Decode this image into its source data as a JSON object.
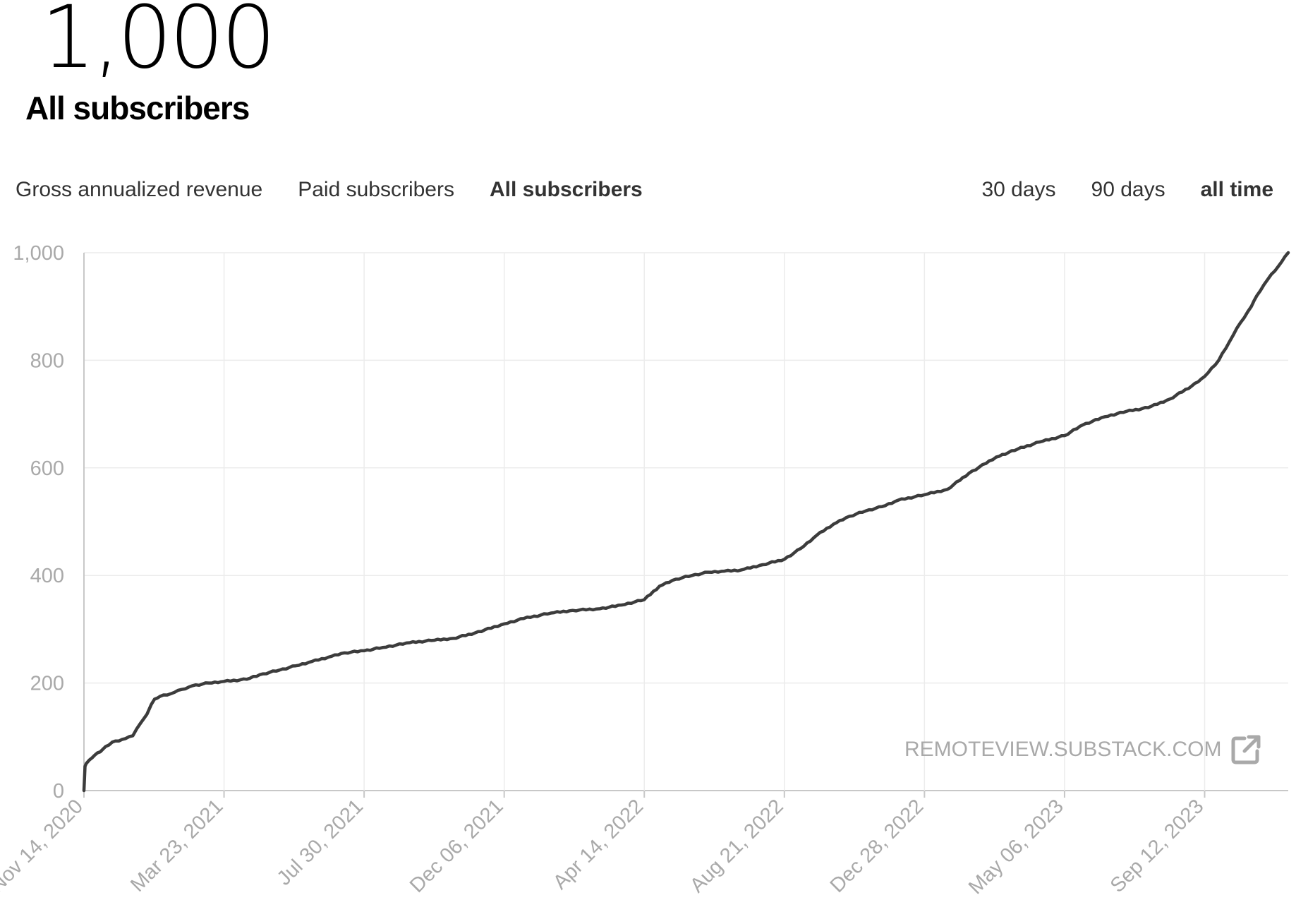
{
  "header": {
    "value": "1,000",
    "title": "All subscribers"
  },
  "metric_tabs": [
    {
      "label": "Gross annualized revenue",
      "active": false
    },
    {
      "label": "Paid subscribers",
      "active": false
    },
    {
      "label": "All subscribers",
      "active": true
    }
  ],
  "range_tabs": [
    {
      "label": "30 days",
      "active": false
    },
    {
      "label": "90 days",
      "active": false
    },
    {
      "label": "all time",
      "active": true
    }
  ],
  "watermark": {
    "text": "REMOTEVIEW.SUBSTACK.COM",
    "icon": "external-link-icon"
  },
  "colors": {
    "line": "#3c3c3c",
    "grid": "#ececec",
    "axis": "#c8c8c8",
    "tick_text": "#a9a9a9"
  },
  "chart_data": {
    "type": "line",
    "title": "All subscribers",
    "xlabel": "",
    "ylabel": "",
    "ylim": [
      0,
      1000
    ],
    "yticks": [
      0,
      200,
      400,
      600,
      800,
      1000
    ],
    "ytick_labels": [
      "0",
      "200",
      "400",
      "600",
      "800",
      "1,000"
    ],
    "xlim": [
      0,
      1109
    ],
    "xticks": [
      0,
      129,
      258,
      387,
      516,
      645,
      774,
      903,
      1032
    ],
    "xtick_labels": [
      "Nov 14, 2020",
      "Mar 23, 2021",
      "Jul 30, 2021",
      "Dec 06, 2021",
      "Apr 14, 2022",
      "Aug 21, 2022",
      "Dec 28, 2022",
      "May 06, 2023",
      "Sep 12, 2023"
    ],
    "x_unit": "days since Nov 14, 2020",
    "grid": true,
    "series": [
      {
        "name": "All subscribers",
        "x": [
          0,
          1,
          2,
          5,
          10,
          15,
          20,
          26,
          35,
          45,
          52,
          58,
          62,
          65,
          70,
          80,
          90,
          100,
          115,
          129,
          150,
          165,
          180,
          195,
          210,
          225,
          240,
          258,
          275,
          300,
          320,
          340,
          360,
          387,
          405,
          430,
          450,
          475,
          495,
          516,
          530,
          545,
          560,
          575,
          590,
          605,
          625,
          645,
          660,
          675,
          690,
          705,
          720,
          735,
          750,
          774,
          795,
          815,
          840,
          860,
          880,
          903,
          920,
          940,
          960,
          980,
          1000,
          1020,
          1032,
          1045,
          1055,
          1065,
          1075,
          1080,
          1090,
          1100,
          1109
        ],
        "y": [
          0,
          45,
          50,
          57,
          66,
          72,
          82,
          90,
          95,
          102,
          125,
          142,
          160,
          170,
          175,
          180,
          188,
          195,
          200,
          203,
          207,
          217,
          224,
          232,
          240,
          248,
          256,
          260,
          266,
          275,
          279,
          283,
          293,
          310,
          320,
          330,
          335,
          338,
          345,
          355,
          380,
          393,
          400,
          406,
          408,
          410,
          420,
          430,
          450,
          475,
          495,
          510,
          520,
          528,
          540,
          550,
          560,
          590,
          620,
          635,
          648,
          660,
          680,
          695,
          705,
          712,
          728,
          752,
          770,
          800,
          835,
          870,
          900,
          920,
          950,
          975,
          1000
        ]
      }
    ]
  }
}
